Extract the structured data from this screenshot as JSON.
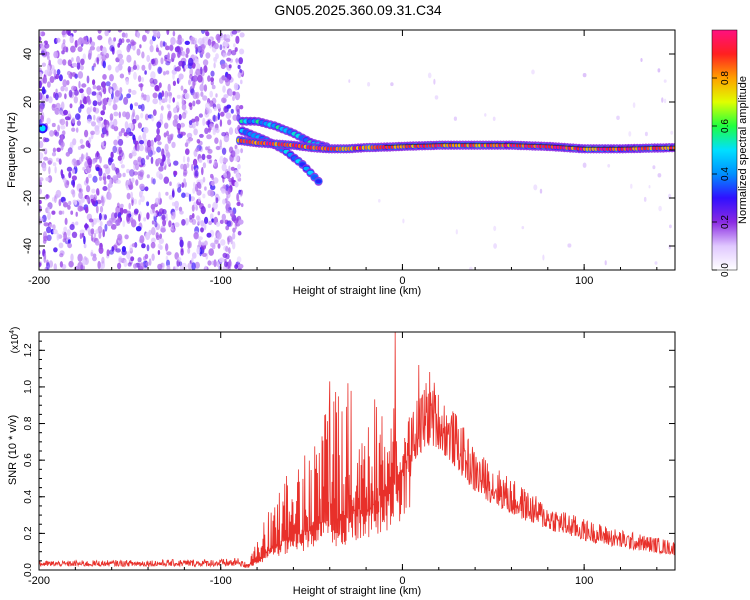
{
  "title": "GN05.2025.360.09.31.C34",
  "chart_data": [
    {
      "type": "heatmap",
      "name": "spectrogram",
      "xlabel": "Height of straight line (km)",
      "ylabel": "Frequency (Hz)",
      "xlim": [
        -200,
        150
      ],
      "ylim": [
        -50,
        50
      ],
      "xticks": [
        -200,
        -100,
        0,
        100
      ],
      "yticks": [
        -40,
        -20,
        0,
        20,
        40
      ],
      "colorbar": {
        "label": "Normalized spectral amplitude",
        "range": [
          0,
          1
        ],
        "ticks": [
          "0.0",
          "0.2",
          "0.4",
          "0.6",
          "0.8"
        ],
        "colormap": [
          "#ffffff",
          "#e0c8ff",
          "#8a2be2",
          "#3010ff",
          "#0090ff",
          "#00e0ff",
          "#20ff40",
          "#e0ff00",
          "#ffa000",
          "#ff2020",
          "#ff1080"
        ]
      },
      "features": [
        {
          "label": "noise region",
          "x_range": [
            -200,
            -88
          ],
          "y_range": [
            -50,
            50
          ],
          "amplitude": 0.25
        },
        {
          "label": "main trace",
          "points": [
            [
              -90,
              4
            ],
            [
              -80,
              3
            ],
            [
              -70,
              2.5
            ],
            [
              -60,
              2
            ],
            [
              -50,
              1
            ],
            [
              -40,
              0.5
            ],
            [
              -30,
              0.5
            ],
            [
              -20,
              1
            ],
            [
              -10,
              1.2
            ],
            [
              0,
              1.5
            ],
            [
              20,
              2
            ],
            [
              40,
              2
            ],
            [
              60,
              2
            ],
            [
              80,
              1.5
            ],
            [
              100,
              0.5
            ],
            [
              120,
              0.5
            ],
            [
              150,
              1
            ]
          ],
          "amplitude": 0.9
        },
        {
          "label": "upper branch",
          "points": [
            [
              -88,
              12
            ],
            [
              -80,
              12
            ],
            [
              -70,
              10
            ],
            [
              -60,
              7
            ],
            [
              -50,
              3
            ],
            [
              -40,
              1
            ]
          ],
          "amplitude": 0.5
        },
        {
          "label": "descending branch",
          "points": [
            [
              -88,
              8
            ],
            [
              -75,
              4
            ],
            [
              -65,
              0
            ],
            [
              -55,
              -6
            ],
            [
              -45,
              -14
            ]
          ],
          "amplitude": 0.45
        },
        {
          "label": "edge spot",
          "points": [
            [
              -198,
              9
            ]
          ],
          "amplitude": 0.5
        }
      ]
    },
    {
      "type": "line",
      "name": "snr",
      "xlabel": "Height of straight line (km)",
      "ylabel": "SNR (10 * v/v)",
      "yscale_label": "(x10",
      "yscale_exp": "4",
      "yscale_close": ")",
      "xlim": [
        -200,
        150
      ],
      "ylim": [
        0,
        1.3
      ],
      "xticks": [
        -200,
        -100,
        0,
        100
      ],
      "yticks": [
        "0.0",
        "0.2",
        "0.4",
        "0.6",
        "0.8",
        "1.0",
        "1.2"
      ],
      "color": "#e8302a",
      "envelope": {
        "x": [
          -200,
          -100,
          -85,
          -80,
          -70,
          -60,
          -50,
          -40,
          -30,
          -20,
          -10,
          -5,
          0,
          10,
          15,
          20,
          30,
          40,
          60,
          80,
          100,
          120,
          150
        ],
        "baseline": [
          0.02,
          0.02,
          0.02,
          0.06,
          0.12,
          0.18,
          0.22,
          0.25,
          0.28,
          0.32,
          0.4,
          0.45,
          0.55,
          0.62,
          0.68,
          0.66,
          0.55,
          0.42,
          0.3,
          0.22,
          0.16,
          0.12,
          0.08
        ],
        "peak": [
          0.05,
          0.06,
          0.07,
          0.2,
          0.4,
          0.6,
          0.75,
          1.02,
          1.0,
          0.95,
          0.92,
          1.05,
          0.75,
          0.98,
          1.1,
          0.98,
          0.85,
          0.66,
          0.5,
          0.36,
          0.28,
          0.22,
          0.16
        ]
      },
      "annotated_peaks": [
        {
          "x": -4,
          "y": 1.31
        },
        {
          "x": 9,
          "y": 1.12
        },
        {
          "x": -40,
          "y": 1.03
        },
        {
          "x": -30,
          "y": 1.02
        }
      ]
    }
  ]
}
